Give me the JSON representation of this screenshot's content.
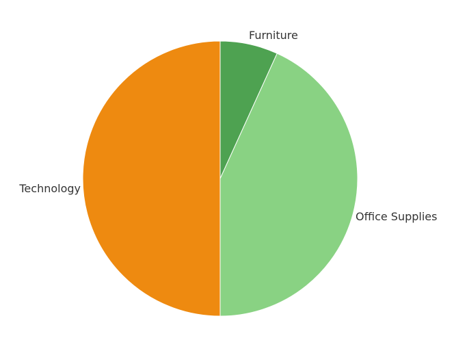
{
  "chart_data": {
    "type": "pie",
    "title": "",
    "slices": [
      {
        "label": "Furniture",
        "value": 6.8,
        "color": "#4ea251"
      },
      {
        "label": "Office Supplies",
        "value": 43.2,
        "color": "#89d283"
      },
      {
        "label": "Technology",
        "value": 50.0,
        "color": "#ee8a10"
      }
    ]
  }
}
